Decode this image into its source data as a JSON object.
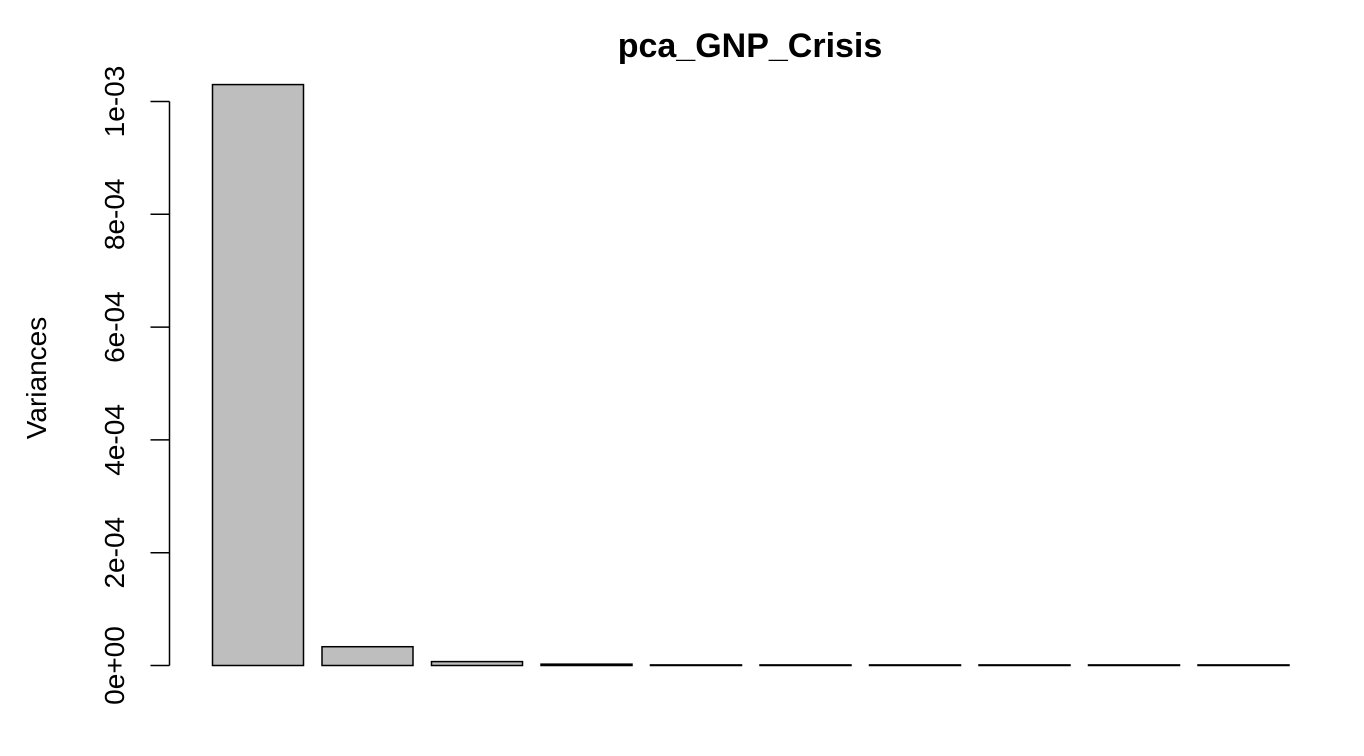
{
  "chart_data": {
    "type": "bar",
    "title": "pca_GNP_Crisis",
    "xlabel": "",
    "ylabel": "Variances",
    "ylim": [
      0,
      0.001
    ],
    "yticks": [
      0,
      0.0002,
      0.0004,
      0.0006,
      0.0008,
      0.001
    ],
    "ytick_labels": [
      "0e+00",
      "2e-04",
      "4e-04",
      "6e-04",
      "8e-04",
      "1e-03"
    ],
    "values": [
      0.00103,
      3.33e-05,
      6.9e-06,
      2.4e-06,
      8e-07,
      4e-07,
      2e-07,
      1e-07,
      5e-08,
      2e-08
    ],
    "bar_color": "#bebebe",
    "grid": false,
    "legend": false
  }
}
